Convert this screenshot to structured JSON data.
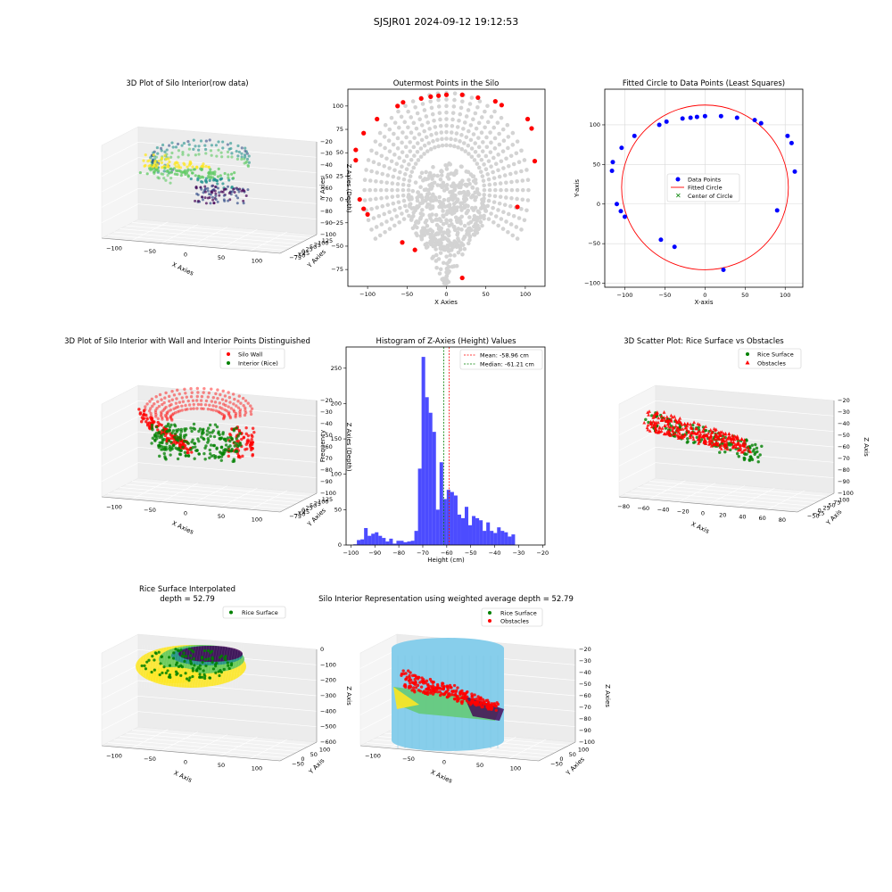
{
  "suptitle": "SJSJR01 2024-09-12 19:12:53",
  "colors": {
    "viridis": [
      "#440154",
      "#3b528b",
      "#21918c",
      "#5ec962",
      "#fde725"
    ],
    "wall": "#ff0000",
    "rice": "#008000",
    "gray_pts": "#d3d3d3",
    "blue_pts": "#0000ff",
    "hist": "#0000ff",
    "silo_body": "#87ceeb"
  },
  "panels": {
    "p1": {
      "title": "3D Plot of Silo Interior(row data)",
      "xlabel": "X Axies",
      "ylabel": "Y Axies",
      "zlabel": "Z Axies (Depth)",
      "xticks": [
        "−100",
        "−50",
        "0",
        "50",
        "100"
      ],
      "yticks": [
        "−75",
        "−50",
        "−25",
        "0",
        "25",
        "50",
        "75",
        "100",
        "125"
      ],
      "zticks": [
        "−20",
        "−30",
        "−40",
        "−50",
        "−60",
        "−70",
        "−80",
        "−90",
        "−100"
      ]
    },
    "p2": {
      "title": "Outermost Points in the Silo",
      "xlabel": "X Axies",
      "ylabel": "Y Axies"
    },
    "p3": {
      "title": "Fitted Circle to Data Points (Least Squares)",
      "xlabel": "X-axis",
      "ylabel": "Y-axis",
      "legend": [
        "Data Points",
        "Fitted Circle",
        "Center of Circle"
      ]
    },
    "p4": {
      "title": "3D Plot of Silo Interior with Wall and Interior Points Distinguished",
      "xlabel": "X Axies",
      "ylabel": "Y Axies",
      "zlabel": "Z Axies (Depth)",
      "legend": [
        "Silo Wall",
        "Interior (Rice)"
      ],
      "xticks": [
        "−100",
        "−50",
        "0",
        "50",
        "100"
      ],
      "yticks": [
        "−75",
        "−50",
        "−25",
        "0",
        "25",
        "50",
        "75",
        "100",
        "125"
      ],
      "zticks": [
        "−20",
        "−30",
        "−40",
        "−50",
        "−60",
        "−70",
        "−80",
        "−90",
        "−100"
      ]
    },
    "p5": {
      "title": "Histogram of Z-Axies (Height) Values",
      "xlabel": "Height (cm)",
      "ylabel": "Frequency",
      "legend": [
        "Mean: -58.96 cm",
        "Median: -61.21 cm"
      ]
    },
    "p6": {
      "title": "3D Scatter Plot: Rice Surface vs Obstacles",
      "xlabel": "X Axis",
      "ylabel": "Y Axis",
      "zlabel": "Z Axis",
      "legend": [
        "Rice Surface",
        "Obstacles"
      ],
      "xticks": [
        "−80",
        "−60",
        "−40",
        "−20",
        "0",
        "20",
        "40",
        "60",
        "80"
      ],
      "yticks": [
        "−50",
        "−25",
        "0",
        "25",
        "50",
        "75",
        "100"
      ],
      "zticks": [
        "−20",
        "−30",
        "−40",
        "−50",
        "−60",
        "−70",
        "−80",
        "−90",
        "−100"
      ]
    },
    "p7": {
      "title": "Rice Surface Interpolated",
      "title2": "depth = 52.79",
      "xlabel": "X Axis",
      "ylabel": "Y Axis",
      "zlabel": "Z Axis",
      "legend": [
        "Rice Surface"
      ],
      "xticks": [
        "−100",
        "−50",
        "0",
        "50",
        "100"
      ],
      "yticks": [
        "−50",
        "0",
        "50",
        "100"
      ],
      "zticks": [
        "0",
        "−100",
        "−200",
        "−300",
        "−400",
        "−500",
        "−600"
      ]
    },
    "p8": {
      "title": "Silo Interior Representation using weighted average depth = 52.79",
      "xlabel": "X Axies",
      "ylabel": "Y Axies",
      "zlabel": "Z Axies",
      "legend": [
        "Rice Surface",
        "Obstacles"
      ],
      "xticks": [
        "−100",
        "−50",
        "0",
        "50",
        "100"
      ],
      "yticks": [
        "−50",
        "0",
        "50",
        "100"
      ],
      "zticks": [
        "−20",
        "−30",
        "−40",
        "−50",
        "−60",
        "−70",
        "−80",
        "−90",
        "−100"
      ]
    }
  },
  "chart_data": [
    {
      "type": "scatter",
      "title": "Outermost Points in the Silo",
      "xlabel": "X Axies",
      "ylabel": "Y Axies",
      "xlim": [
        -125,
        125
      ],
      "ylim": [
        -93,
        118
      ],
      "xticks": [
        -100,
        -50,
        0,
        50,
        100
      ],
      "yticks": [
        -75,
        -50,
        -25,
        0,
        25,
        50,
        75,
        100
      ],
      "grid": false,
      "outermost_points": [
        [
          -115,
          53
        ],
        [
          -115,
          42
        ],
        [
          -110,
          0
        ],
        [
          -105,
          -10
        ],
        [
          -105,
          71
        ],
        [
          -100,
          -16
        ],
        [
          -88,
          86
        ],
        [
          -62,
          100
        ],
        [
          -55,
          104
        ],
        [
          -56,
          -46
        ],
        [
          -40,
          -54
        ],
        [
          -32,
          108
        ],
        [
          -20,
          110
        ],
        [
          -10,
          111
        ],
        [
          0,
          112
        ],
        [
          20,
          112
        ],
        [
          20,
          -84
        ],
        [
          40,
          109
        ],
        [
          62,
          105
        ],
        [
          70,
          101
        ],
        [
          90,
          -8
        ],
        [
          103,
          86
        ],
        [
          108,
          76
        ],
        [
          112,
          41
        ]
      ]
    },
    {
      "type": "scatter",
      "title": "Fitted Circle to Data Points (Least Squares)",
      "xlabel": "X-axis",
      "ylabel": "Y-axis",
      "xlim": [
        -125,
        122
      ],
      "ylim": [
        -105,
        145
      ],
      "xticks": [
        -100,
        -50,
        0,
        50,
        100
      ],
      "yticks": [
        -100,
        -50,
        0,
        50,
        100
      ],
      "grid": true,
      "legend_position": "center",
      "series": [
        {
          "name": "Data Points",
          "points": [
            [
              -115,
              53
            ],
            [
              -116,
              42
            ],
            [
              -110,
              0
            ],
            [
              -105,
              -9
            ],
            [
              -104,
              71
            ],
            [
              -100,
              -16
            ],
            [
              -88,
              86
            ],
            [
              -57,
              100
            ],
            [
              -48,
              104
            ],
            [
              -55,
              -45
            ],
            [
              -38,
              -54
            ],
            [
              -28,
              108
            ],
            [
              -18,
              109
            ],
            [
              -10,
              110
            ],
            [
              0,
              111
            ],
            [
              20,
              111
            ],
            [
              23,
              -83
            ],
            [
              40,
              109
            ],
            [
              62,
              106
            ],
            [
              70,
              102
            ],
            [
              90,
              -8
            ],
            [
              103,
              86
            ],
            [
              108,
              77
            ],
            [
              112,
              41
            ]
          ]
        },
        {
          "name": "Fitted Circle",
          "center": [
            0,
            21
          ],
          "radius": 104
        },
        {
          "name": "Center of Circle",
          "points": [
            [
              0,
              21
            ]
          ]
        }
      ]
    },
    {
      "type": "bar",
      "title": "Histogram of Z-Axies (Height) Values",
      "xlabel": "Height (cm)",
      "ylabel": "Frequency",
      "xlim": [
        -102,
        -19
      ],
      "ylim": [
        0,
        280
      ],
      "xticks": [
        -100,
        -90,
        -80,
        -70,
        -60,
        -50,
        -40,
        -30,
        -20
      ],
      "yticks": [
        0,
        50,
        100,
        150,
        200,
        250
      ],
      "bin_edges_start": -99,
      "bin_width": 1.5,
      "values": [
        1,
        7,
        8,
        24,
        13,
        16,
        18,
        13,
        10,
        5,
        9,
        2,
        6,
        6,
        4,
        5,
        6,
        20,
        108,
        266,
        209,
        187,
        160,
        50,
        117,
        65,
        78,
        75,
        70,
        43,
        38,
        54,
        28,
        41,
        38,
        35,
        20,
        32,
        20,
        17,
        25,
        20,
        18,
        12,
        15
      ],
      "reference_lines": [
        {
          "name": "Mean: -58.96 cm",
          "x": -58.96,
          "color": "#ff0000"
        },
        {
          "name": "Median: -61.21 cm",
          "x": -61.21,
          "color": "#008000"
        }
      ]
    }
  ]
}
